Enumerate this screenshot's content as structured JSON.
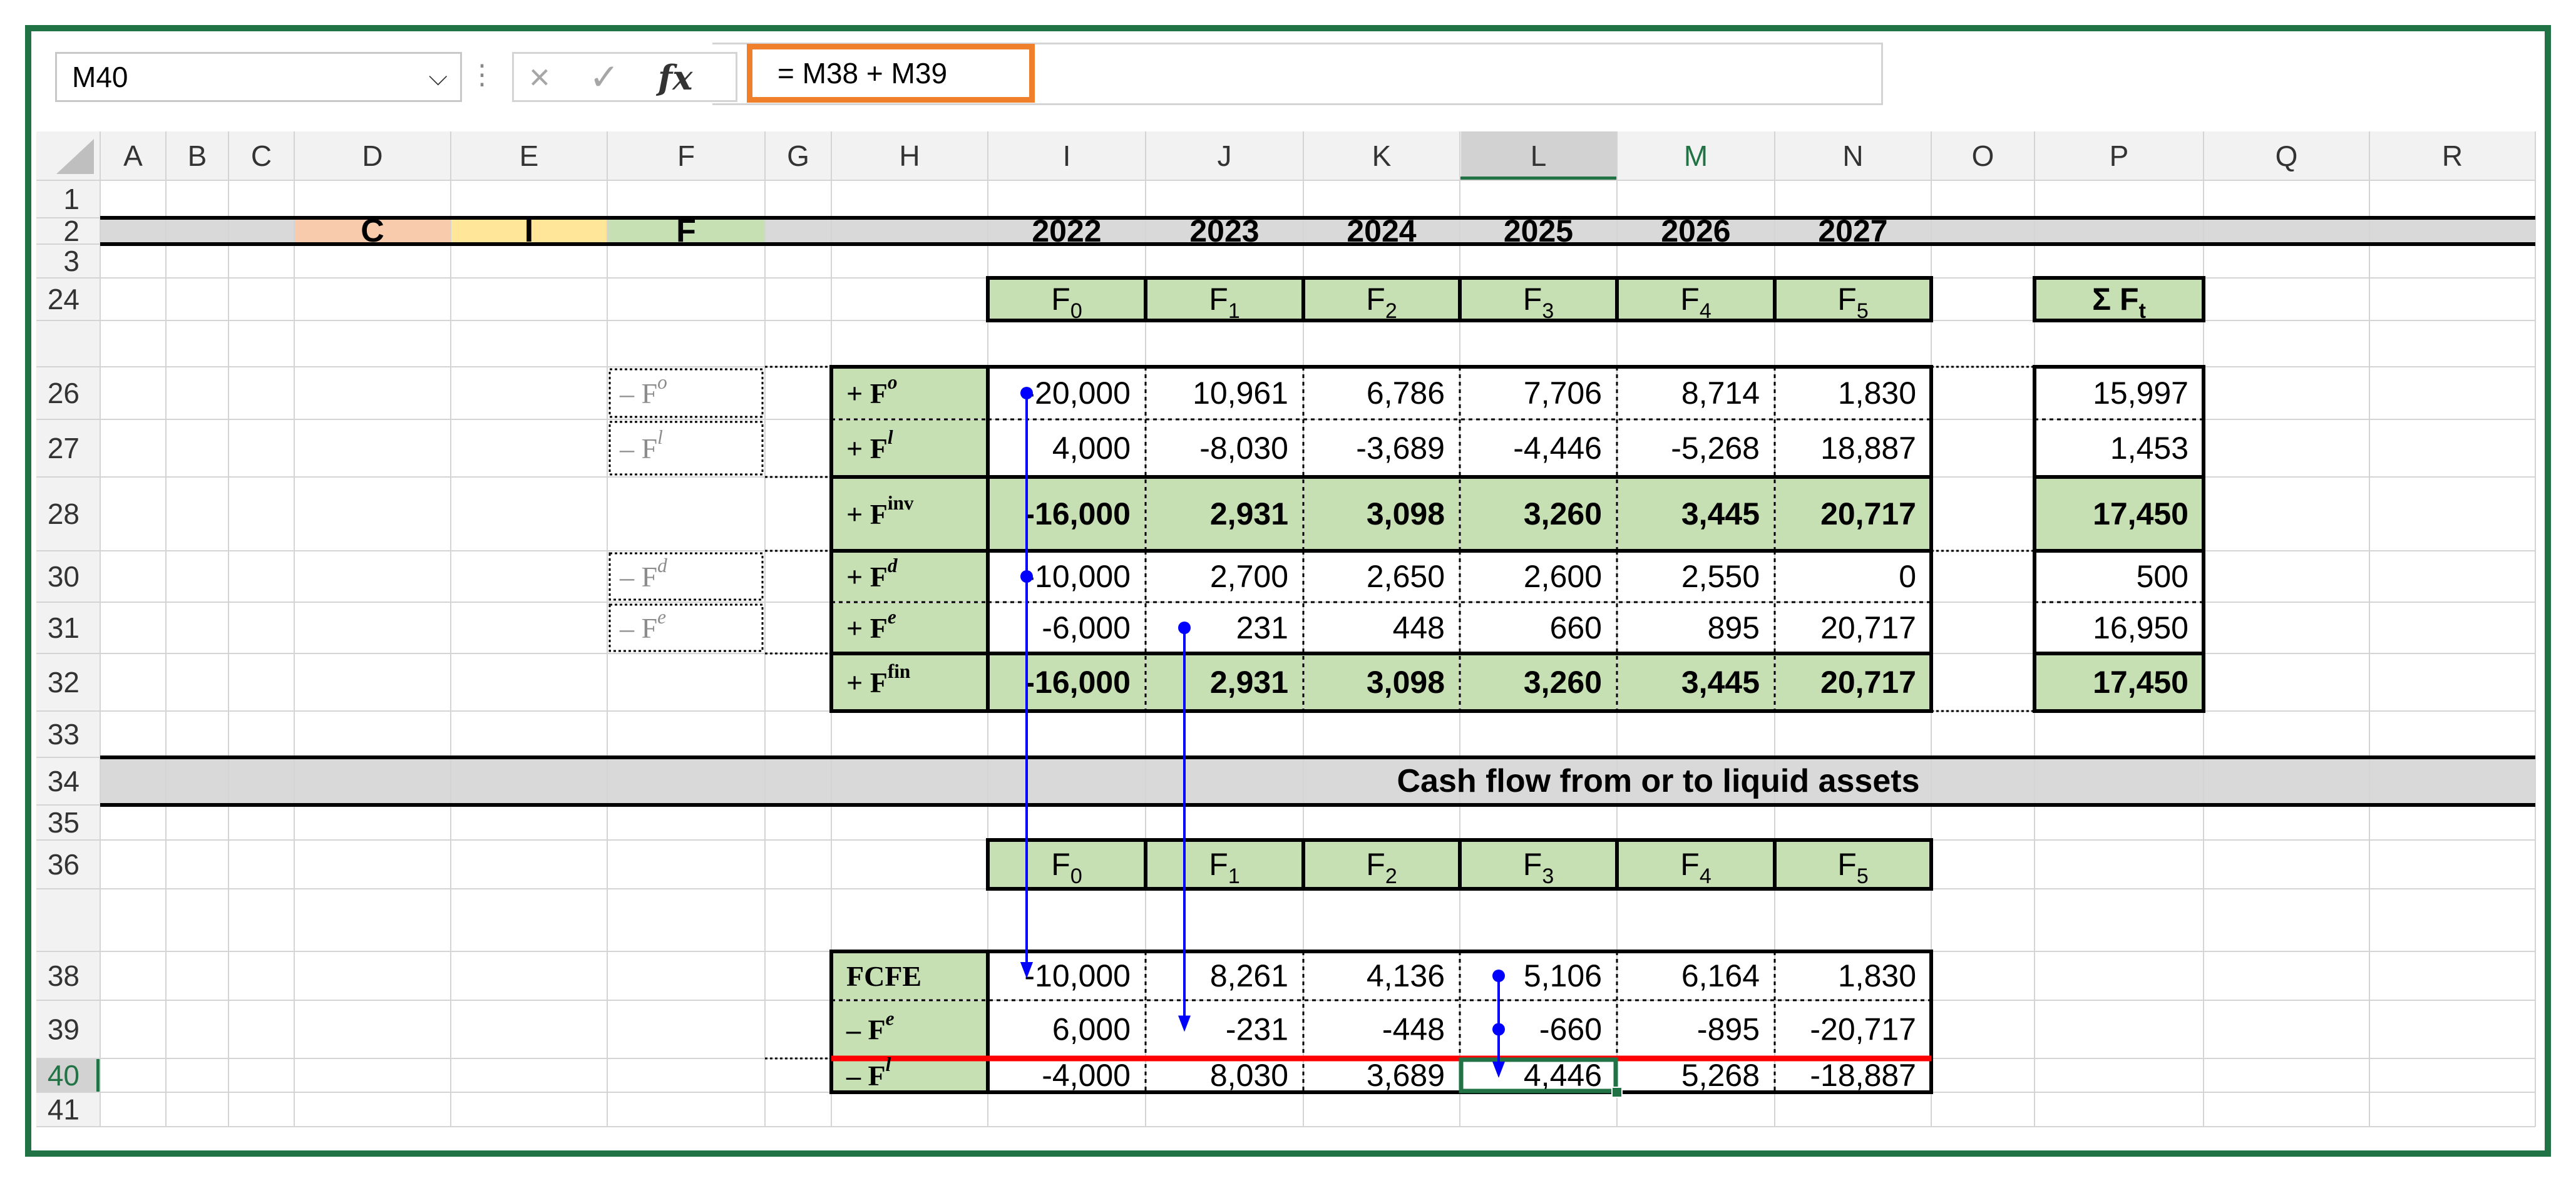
{
  "formula_bar": {
    "name_box": "M40",
    "formula": "= M38 + M39",
    "cancel_icon": "×",
    "enter_icon": "✓",
    "fx_label": "fx"
  },
  "columns": [
    "A",
    "B",
    "C",
    "D",
    "E",
    "F",
    "G",
    "H",
    "I",
    "J",
    "K",
    "L",
    "M",
    "N",
    "O",
    "P",
    "Q",
    "R"
  ],
  "rows": [
    "1",
    "2",
    "3",
    "24",
    "26",
    "27",
    "28",
    "30",
    "31",
    "32",
    "33",
    "34",
    "35",
    "36",
    "38",
    "39",
    "40",
    "41"
  ],
  "header_row": {
    "cif": [
      "C",
      "I",
      "F"
    ],
    "years": [
      "2022",
      "2023",
      "2024",
      "2025",
      "2026",
      "2027"
    ]
  },
  "top_table": {
    "headers": [
      {
        "base": "F",
        "sub": "0"
      },
      {
        "base": "F",
        "sub": "1"
      },
      {
        "base": "F",
        "sub": "2"
      },
      {
        "base": "F",
        "sub": "3"
      },
      {
        "base": "F",
        "sub": "4"
      },
      {
        "base": "F",
        "sub": "5"
      }
    ],
    "sum_header": {
      "base": "Σ F",
      "sub": "t"
    },
    "rows": [
      {
        "side": "– F",
        "side_sup": "o",
        "label": "+ F",
        "label_sup": "o",
        "values": [
          "-20,000",
          "10,961",
          "6,786",
          "7,706",
          "8,714",
          "1,830"
        ],
        "sum": "15,997",
        "bold": false
      },
      {
        "side": "– F",
        "side_sup": "l",
        "label": "+ F",
        "label_sup": "l",
        "values": [
          "4,000",
          "-8,030",
          "-3,689",
          "-4,446",
          "-5,268",
          "18,887"
        ],
        "sum": "1,453",
        "bold": false
      },
      {
        "side": "",
        "side_sup": "",
        "label": "+ F",
        "label_sup": "inv",
        "values": [
          "-16,000",
          "2,931",
          "3,098",
          "3,260",
          "3,445",
          "20,717"
        ],
        "sum": "17,450",
        "bold": true
      },
      {
        "side": "– F",
        "side_sup": "d",
        "label": "+ F",
        "label_sup": "d",
        "values": [
          "-10,000",
          "2,700",
          "2,650",
          "2,600",
          "2,550",
          "0"
        ],
        "sum": "500",
        "bold": false
      },
      {
        "side": "– F",
        "side_sup": "e",
        "label": "+ F",
        "label_sup": "e",
        "values": [
          "-6,000",
          "231",
          "448",
          "660",
          "895",
          "20,717"
        ],
        "sum": "16,950",
        "bold": false
      },
      {
        "side": "",
        "side_sup": "",
        "label": "+ F",
        "label_sup": "fin",
        "values": [
          "-16,000",
          "2,931",
          "3,098",
          "3,260",
          "3,445",
          "20,717"
        ],
        "sum": "17,450",
        "bold": true
      }
    ]
  },
  "section_title": "Cash flow from or to liquid assets",
  "bottom_table": {
    "headers": [
      {
        "base": "F",
        "sub": "0"
      },
      {
        "base": "F",
        "sub": "1"
      },
      {
        "base": "F",
        "sub": "2"
      },
      {
        "base": "F",
        "sub": "3"
      },
      {
        "base": "F",
        "sub": "4"
      },
      {
        "base": "F",
        "sub": "5"
      }
    ],
    "rows": [
      {
        "label": "FCFE",
        "label_sup": "",
        "values": [
          "-10,000",
          "8,261",
          "4,136",
          "5,106",
          "6,164",
          "1,830"
        ]
      },
      {
        "label": "– F",
        "label_sup": "e",
        "values": [
          "6,000",
          "-231",
          "-448",
          "-660",
          "-895",
          "-20,717"
        ]
      },
      {
        "label": "– F",
        "label_sup": "l",
        "values": [
          "-4,000",
          "8,030",
          "3,689",
          "4,446",
          "5,268",
          "-18,887"
        ]
      }
    ]
  },
  "colors": {
    "grid_line": "#d4d4d4",
    "header_bg": "#f2f2f2",
    "selected_header_bg": "#d2d2d2",
    "band_gray": "#d9d9d9",
    "green_fill": "#c6e0b4",
    "c_fill": "#f8cbad",
    "i_fill": "#ffe699",
    "f_fill": "#c6e0b4",
    "trace_arrow": "#0000ff",
    "red_line": "#ff0000",
    "selection": "#217346",
    "highlight_box": "#f07f2c"
  }
}
